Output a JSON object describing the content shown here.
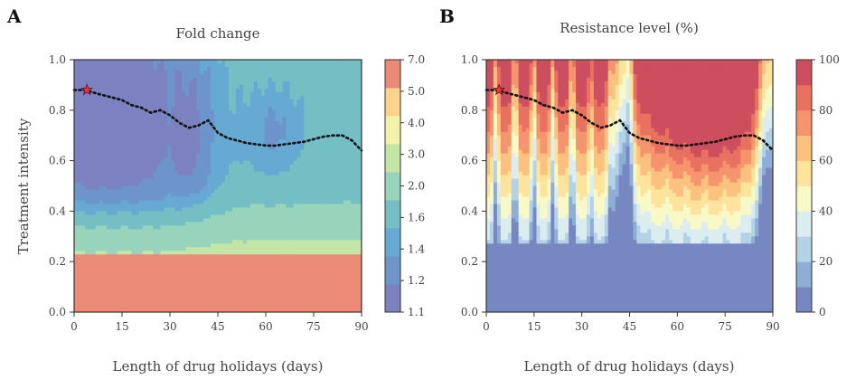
{
  "chart_data": [
    {
      "panel": "A",
      "type": "heatmap",
      "title": "Fold change",
      "xlabel": "Length of drug holidays (days)",
      "ylabel": "Treatment intensity",
      "xlim": [
        0,
        90
      ],
      "ylim": [
        0,
        1
      ],
      "xticks": [
        0,
        15,
        30,
        45,
        60,
        75,
        90
      ],
      "yticks": [
        0.0,
        0.2,
        0.4,
        0.6,
        0.8,
        1.0
      ],
      "colorbar": {
        "levels": [
          1.1,
          1.2,
          1.4,
          1.6,
          2.0,
          3.0,
          4.0,
          5.0,
          7.0
        ],
        "ticks": [
          1.1,
          1.2,
          1.4,
          1.6,
          2.0,
          3.0,
          4.0,
          5.0,
          7.0
        ],
        "colors": [
          "#7c82c0",
          "#6d95cc",
          "#66a9d3",
          "#74bfc4",
          "#97d4bb",
          "#c3e6a6",
          "#f3f2ab",
          "#fbd38a",
          "#ec8a78"
        ]
      },
      "marker": {
        "x": 4,
        "y": 0.88,
        "color": "#e8383d"
      },
      "optimal_path": {
        "x": [
          0,
          3,
          6,
          9,
          12,
          15,
          18,
          21,
          24,
          27,
          30,
          33,
          36,
          39,
          42,
          45,
          48,
          51,
          54,
          57,
          60,
          63,
          66,
          69,
          72,
          75,
          78,
          81,
          84,
          87,
          90
        ],
        "y": [
          0.88,
          0.88,
          0.87,
          0.86,
          0.85,
          0.84,
          0.82,
          0.81,
          0.79,
          0.8,
          0.78,
          0.75,
          0.73,
          0.74,
          0.76,
          0.71,
          0.69,
          0.68,
          0.67,
          0.665,
          0.66,
          0.66,
          0.665,
          0.67,
          0.675,
          0.685,
          0.695,
          0.7,
          0.7,
          0.68,
          0.64
        ]
      }
    },
    {
      "panel": "B",
      "type": "heatmap",
      "title": "Resistance level (%)",
      "xlabel": "Length of drug holidays (days)",
      "xlim": [
        0,
        90
      ],
      "ylim": [
        0,
        1
      ],
      "xticks": [
        0,
        15,
        30,
        45,
        60,
        75,
        90
      ],
      "yticks": [
        0.0,
        0.2,
        0.4,
        0.6,
        0.8,
        1.0
      ],
      "colorbar": {
        "levels": [
          0,
          10,
          20,
          30,
          40,
          50,
          60,
          70,
          80,
          90,
          100
        ],
        "ticks": [
          0,
          20,
          40,
          60,
          80,
          100
        ],
        "colors": [
          "#7787c1",
          "#8eaed6",
          "#b4d2e6",
          "#dcedef",
          "#f8f9c6",
          "#fde39c",
          "#fcc17f",
          "#f5946d",
          "#e8715f",
          "#cd4e5f"
        ]
      },
      "marker": {
        "x": 4,
        "y": 0.88,
        "color": "#e8383d"
      },
      "optimal_path": {
        "x": [
          0,
          3,
          6,
          9,
          12,
          15,
          18,
          21,
          24,
          27,
          30,
          33,
          36,
          39,
          42,
          45,
          48,
          51,
          54,
          57,
          60,
          63,
          66,
          69,
          72,
          75,
          78,
          81,
          84,
          87,
          90
        ],
        "y": [
          0.88,
          0.88,
          0.87,
          0.86,
          0.85,
          0.84,
          0.82,
          0.81,
          0.79,
          0.8,
          0.78,
          0.75,
          0.73,
          0.74,
          0.76,
          0.71,
          0.69,
          0.68,
          0.67,
          0.665,
          0.66,
          0.66,
          0.665,
          0.67,
          0.675,
          0.685,
          0.695,
          0.7,
          0.7,
          0.68,
          0.64
        ]
      }
    }
  ]
}
